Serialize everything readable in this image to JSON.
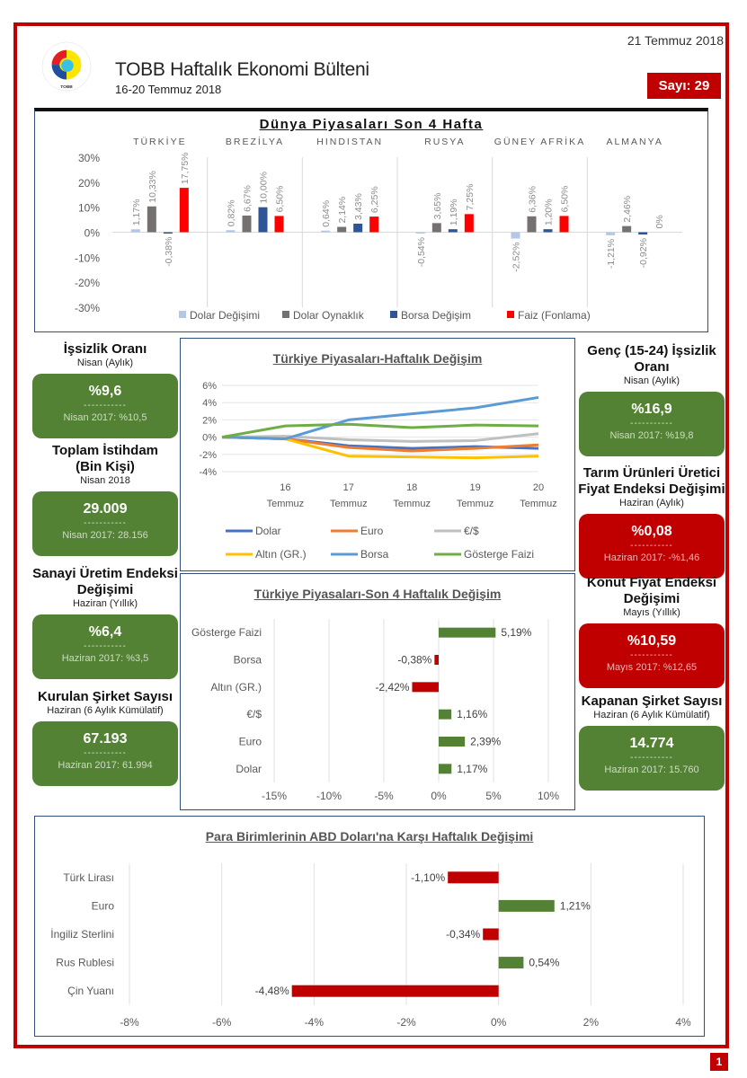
{
  "header": {
    "date": "21 Temmuz 2018",
    "title": "TOBB Haftalık Ekonomi Bülteni",
    "subtitle": "16-20 Temmuz 2018",
    "issue": "Sayı: 29",
    "logo_text": "TOBB"
  },
  "page_number": "1",
  "left_stats": [
    {
      "heading": "İşsizlik Oranı",
      "sub": "Nisan (Aylık)",
      "value": "%9,6",
      "divider": "-----------",
      "prev": "Nisan 2017: %10,5",
      "color": "green"
    },
    {
      "heading": "Toplam İstihdam (Bin Kişi)",
      "sub": "Nisan 2018",
      "value": "29.009",
      "divider": "-----------",
      "prev": "Nisan 2017:  28.156",
      "color": "green"
    },
    {
      "heading": "Sanayi Üretim Endeksi Değişimi",
      "sub": "Haziran (Yıllık)",
      "value": "%6,4",
      "divider": "-----------",
      "prev": "Haziran 2017: %3,5",
      "color": "green"
    },
    {
      "heading": "Kurulan Şirket Sayısı",
      "sub": "Haziran (6 Aylık Kümülatif)",
      "value": "67.193",
      "divider": "-----------",
      "prev": "Haziran 2017: 61.994",
      "color": "green"
    }
  ],
  "right_stats": [
    {
      "heading": "Genç (15-24) İşsizlik Oranı",
      "sub": "Nisan (Aylık)",
      "value": "%16,9",
      "divider": "-----------",
      "prev": "Nisan 2017: %19,8",
      "color": "green"
    },
    {
      "heading": "Tarım Ürünleri Üretici Fiyat Endeksi Değişimi",
      "sub": "Haziran (Aylık)",
      "value": "%0,08",
      "divider": "-----------",
      "prev": "Haziran 2017: -%1,46",
      "color": "red"
    },
    {
      "heading": "Konut Fiyat Endeksi Değişimi",
      "sub": "Mayıs (Yıllık)",
      "value": "%10,59",
      "divider": "-----------",
      "prev": "Mayıs 2017: %12,65",
      "color": "red"
    },
    {
      "heading": "Kapanan Şirket Sayısı",
      "sub": "Haziran (6 Aylık Kümülatif)",
      "value": "14.774",
      "divider": "-----------",
      "prev": "Haziran 2017: 15.760",
      "color": "green"
    }
  ],
  "colors": {
    "green": "#548235",
    "red": "#c00000",
    "frame": "#c00000",
    "panel_border": "#2f4f7f"
  },
  "chart_data": [
    {
      "type": "bar",
      "title": "Dünya Piyasaları Son 4 Hafta",
      "categories": [
        "TÜRKİYE",
        "BREZİLYA",
        "HINDISTAN",
        "RUSYA",
        "GÜNEY AFRİKA",
        "ALMANYA"
      ],
      "series": [
        {
          "name": "Dolar Değişimi",
          "color": "#b4c7e7",
          "values": [
            1.17,
            0.82,
            0.64,
            -0.54,
            -2.52,
            -1.21
          ],
          "labels": [
            "1,17%",
            "0,82%",
            "0,64%",
            "-0,54%",
            "-2,52%",
            "-1,21%"
          ]
        },
        {
          "name": "Dolar Oynaklık",
          "color": "#767171",
          "values": [
            10.33,
            6.67,
            2.14,
            3.65,
            6.36,
            2.46
          ],
          "labels": [
            "10,33%",
            "6,67%",
            "2,14%",
            "3,65%",
            "6,36%",
            "2,46%"
          ]
        },
        {
          "name": "Borsa Değişim",
          "color": "#2f5597",
          "values": [
            -0.38,
            10.0,
            3.43,
            1.19,
            1.2,
            -0.92
          ],
          "labels": [
            "-0,38%",
            "10,00%",
            "3,43%",
            "1,19%",
            "1,20%",
            "-0,92%"
          ]
        },
        {
          "name": "Faiz (Fonlama)",
          "color": "#ff0000",
          "values": [
            17.75,
            6.5,
            6.25,
            7.25,
            6.5,
            0
          ],
          "labels": [
            "17,75%",
            "6,50%",
            "6,25%",
            "7,25%",
            "6,50%",
            "0%"
          ]
        }
      ],
      "yticks": [
        "30%",
        "20%",
        "10%",
        "0%",
        "-10%",
        "-20%",
        "-30%"
      ],
      "ylim": [
        -30,
        30
      ],
      "legend": "bottom"
    },
    {
      "type": "line",
      "title": "Türkiye Piyasaları-Haftalık Değişim",
      "x": [
        "",
        "16 Temmuz",
        "17 Temmuz",
        "18 Temmuz",
        "19 Temmuz",
        "20 Temmuz"
      ],
      "xtick_lines": [
        [
          "",
          ""
        ],
        [
          "16",
          "Temmuz"
        ],
        [
          "17",
          "Temmuz"
        ],
        [
          "18",
          "Temmuz"
        ],
        [
          "19",
          "Temmuz"
        ],
        [
          "20",
          "Temmuz"
        ]
      ],
      "series": [
        {
          "name": "Dolar",
          "color": "#4472c4",
          "values": [
            0,
            -0.2,
            -1.0,
            -1.3,
            -1.1,
            -1.3
          ]
        },
        {
          "name": "Euro",
          "color": "#ed7d31",
          "values": [
            0,
            -0.2,
            -1.2,
            -1.6,
            -1.3,
            -0.9
          ]
        },
        {
          "name": "€/$",
          "color": "#bfbfbf",
          "values": [
            0,
            0.1,
            -0.3,
            -0.5,
            -0.4,
            0.4
          ]
        },
        {
          "name": "Altın (GR.)",
          "color": "#ffc000",
          "values": [
            0,
            -0.2,
            -2.2,
            -2.3,
            -2.4,
            -2.2
          ]
        },
        {
          "name": "Borsa",
          "color": "#5b9bd5",
          "values": [
            0,
            -0.2,
            2.0,
            2.7,
            3.4,
            4.6
          ]
        },
        {
          "name": "Gösterge Faizi",
          "color": "#70ad47",
          "values": [
            0,
            1.3,
            1.5,
            1.1,
            1.4,
            1.3
          ]
        }
      ],
      "yticks": [
        "6%",
        "4%",
        "2%",
        "0%",
        "-2%",
        "-4%"
      ],
      "ylim": [
        -4,
        6
      ],
      "legend": "bottom"
    },
    {
      "type": "bar",
      "orientation": "horizontal",
      "title": "Türkiye Piyasaları-Son 4 Haftalık Değişim",
      "categories": [
        "Gösterge Faizi",
        "Borsa",
        "Altın (GR.)",
        "€/$",
        "Euro",
        "Dolar"
      ],
      "values": [
        5.19,
        -0.38,
        -2.42,
        1.16,
        2.39,
        1.17
      ],
      "labels": [
        "5,19%",
        "-0,38%",
        "-2,42%",
        "1,16%",
        "2,39%",
        "1,17%"
      ],
      "xticks": [
        "-15%",
        "-10%",
        "-5%",
        "0%",
        "5%",
        "10%"
      ],
      "xlim": [
        -15,
        10
      ]
    },
    {
      "type": "bar",
      "orientation": "horizontal",
      "title": "Para Birimlerinin ABD Doları'na Karşı Haftalık Değişimi",
      "categories": [
        "Türk Lirası",
        "Euro",
        "İngiliz Sterlini",
        "Rus Rublesi",
        "Çin Yuanı"
      ],
      "values": [
        -1.1,
        1.21,
        -0.34,
        0.54,
        -4.48
      ],
      "labels": [
        "-1,10%",
        "1,21%",
        "-0,34%",
        "0,54%",
        "-4,48%"
      ],
      "xticks": [
        "-8%",
        "-6%",
        "-4%",
        "-2%",
        "0%",
        "2%",
        "4%"
      ],
      "xlim": [
        -8,
        4
      ]
    }
  ]
}
